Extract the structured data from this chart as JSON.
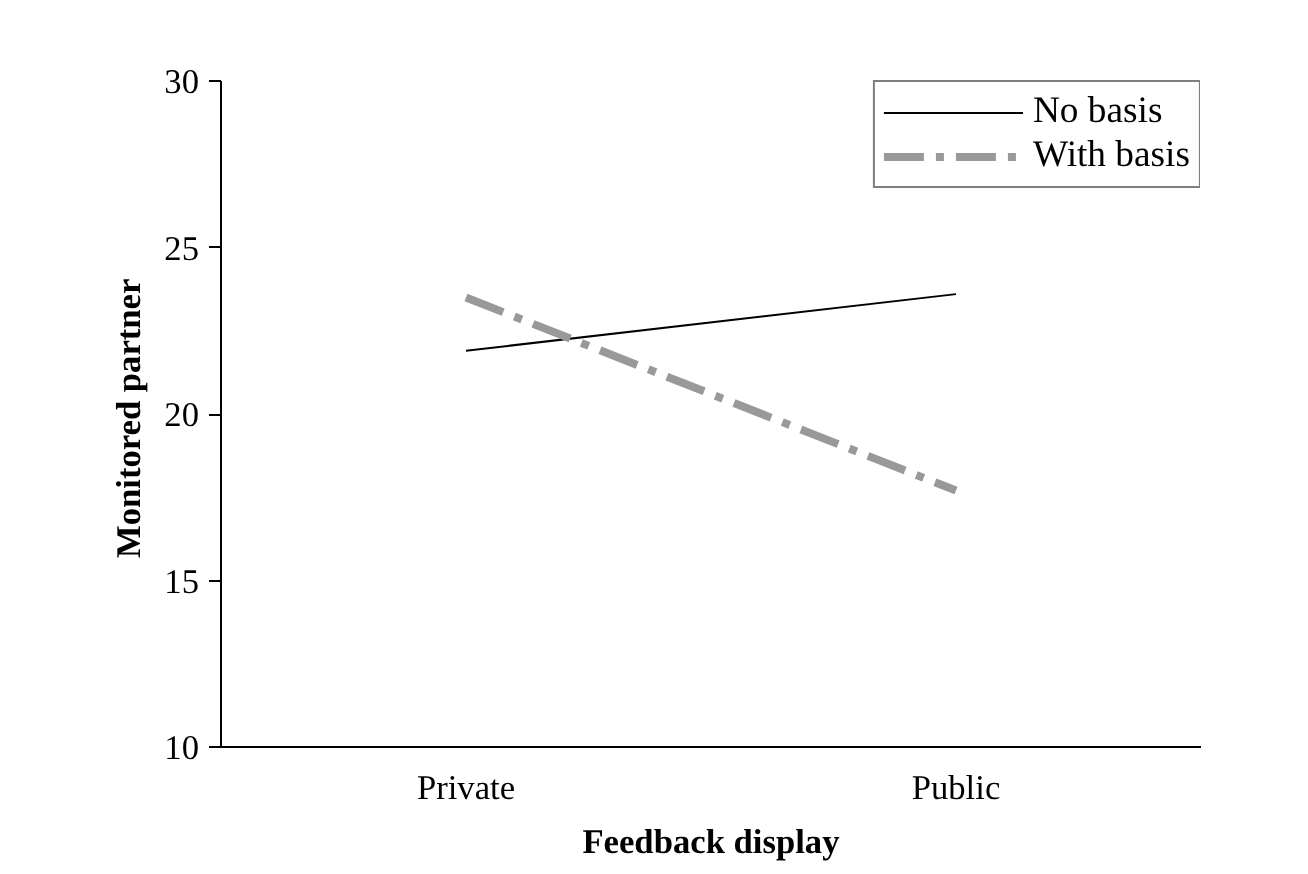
{
  "chart_data": {
    "type": "line",
    "xlabel": "Feedback display",
    "ylabel": "Monitored  partner",
    "categories": [
      "Private",
      "Public"
    ],
    "series": [
      {
        "name": "No basis",
        "color": "#000000",
        "values": [
          21.9,
          23.6
        ],
        "line_style": "solid"
      },
      {
        "name": "With basis",
        "color": "#999999",
        "values": [
          23.5,
          17.7
        ],
        "line_style": "dashdot"
      }
    ],
    "ylim": [
      10,
      30
    ],
    "yticks": [
      10,
      15,
      20,
      25,
      30
    ],
    "grid": false,
    "legend": "top right",
    "marker": "none"
  }
}
